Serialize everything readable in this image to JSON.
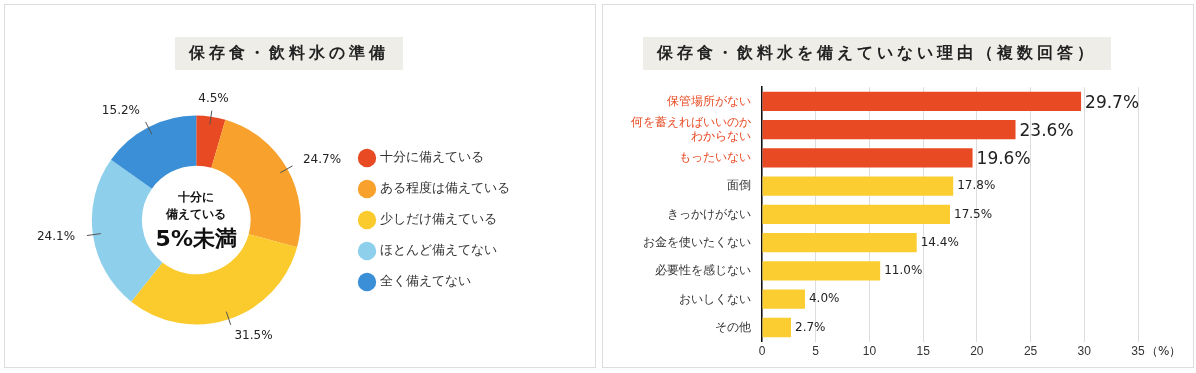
{
  "chart_data": [
    {
      "type": "donut",
      "title": "保存食・飲料水の準備",
      "categories": [
        "十分に備えている",
        "ある程度は備えている",
        "少しだけ備えている",
        "ほとんど備えてない",
        "全く備えてない"
      ],
      "values": [
        4.5,
        24.7,
        31.5,
        24.1,
        15.2
      ],
      "value_labels": [
        "4.5%",
        "24.7%",
        "31.5%",
        "24.1%",
        "15.2%"
      ],
      "colors": [
        "#e84a23",
        "#f8a12c",
        "#fbcb2e",
        "#8ecfec",
        "#3a8fd6"
      ],
      "legend": "right",
      "annotations": [
        "十分に",
        "備えている",
        "5%未満"
      ]
    },
    {
      "type": "bar",
      "orientation": "horizontal",
      "title": "保存食・飲料水を備えていない理由（複数回答）",
      "xlabel": "（%）",
      "categories": [
        "保管場所がない",
        "何を蓄えればいいのかわからない",
        "もったいない",
        "面倒",
        "きっかけがない",
        "お金を使いたくない",
        "必要性を感じない",
        "おいしくない",
        "その他"
      ],
      "values": [
        29.7,
        23.6,
        19.6,
        17.8,
        17.5,
        14.4,
        11.0,
        4.0,
        2.7
      ],
      "value_labels": [
        "29.7%",
        "23.6%",
        "19.6%",
        "17.8%",
        "17.5%",
        "14.4%",
        "11.0%",
        "4.0%",
        "2.7%"
      ],
      "colors": [
        "#e84a23",
        "#e84a23",
        "#e84a23",
        "#fbcd30",
        "#fbcd30",
        "#fbcd30",
        "#fbcd30",
        "#fbcd30",
        "#fbcd30"
      ],
      "xlim": [
        0,
        35
      ],
      "xticks": [
        0,
        5,
        10,
        15,
        20,
        25,
        30,
        35
      ],
      "grid": "x",
      "legend": false
    }
  ]
}
